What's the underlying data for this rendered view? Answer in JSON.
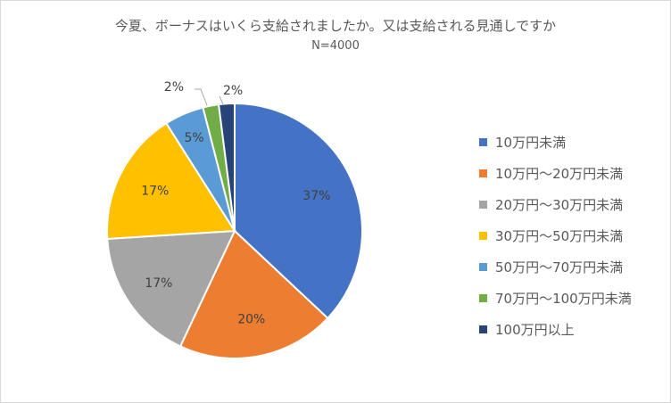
{
  "chart_data": {
    "type": "pie",
    "title": "今夏、ボーナスはいくら支給されましたか。又は支給される見通しですか",
    "subtitle": "N=4000",
    "legend_position": "right",
    "slices": [
      {
        "label": "10万円未満",
        "value": 37,
        "data_label": "37%",
        "color": "#4472C4"
      },
      {
        "label": "10万円～20万円未満",
        "value": 20,
        "data_label": "20%",
        "color": "#ED7D31"
      },
      {
        "label": "20万円～30万円未満",
        "value": 17,
        "data_label": "17%",
        "color": "#A5A5A5"
      },
      {
        "label": "30万円～50万円未満",
        "value": 17,
        "data_label": "17%",
        "color": "#FFC000"
      },
      {
        "label": "50万円～70万円未満",
        "value": 5,
        "data_label": "5%",
        "color": "#5B9BD5"
      },
      {
        "label": "70万円～100万円未満",
        "value": 2,
        "data_label": "2%",
        "color": "#70AD47"
      },
      {
        "label": "100万円以上",
        "value": 2,
        "data_label": "2%",
        "color": "#264478"
      }
    ]
  }
}
